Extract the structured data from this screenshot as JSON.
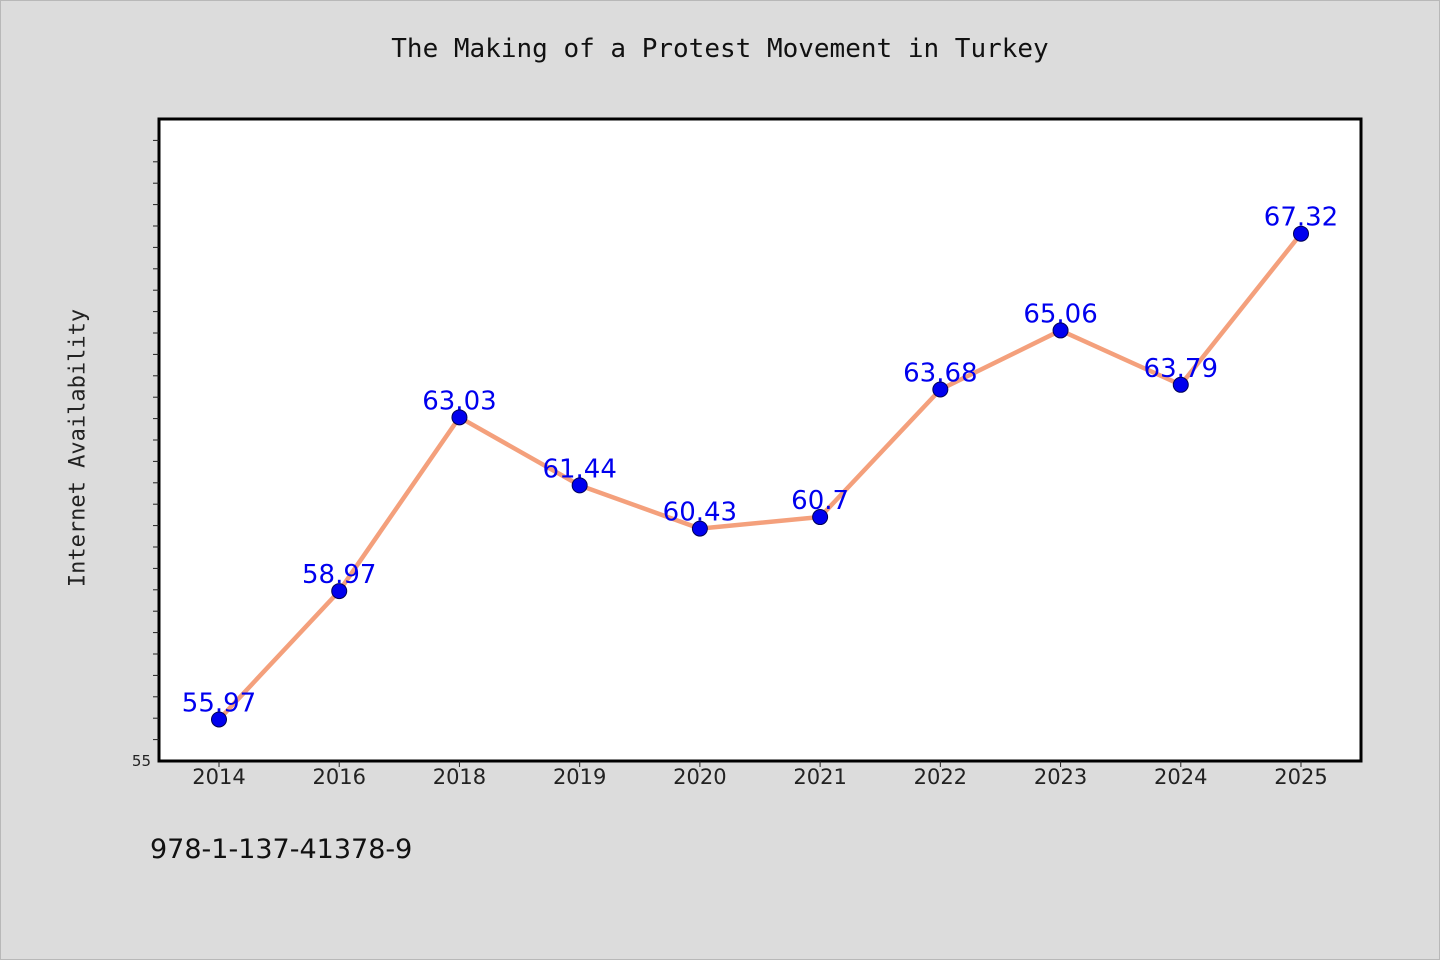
{
  "chart_data": {
    "type": "line",
    "title": "The Making of a Protest Movement in Turkey",
    "xlabel": "",
    "ylabel": "Internet Availability",
    "categories": [
      "2014",
      "2016",
      "2018",
      "2019",
      "2020",
      "2021",
      "2022",
      "2023",
      "2024",
      "2025"
    ],
    "values": [
      55.97,
      58.97,
      63.03,
      61.44,
      60.43,
      60.7,
      63.68,
      65.06,
      63.79,
      67.32
    ],
    "data_labels": [
      "55.97",
      "58.97",
      "63.03",
      "61.44",
      "60.43",
      "60.7",
      "63.68",
      "65.06",
      "63.79",
      "67.32"
    ],
    "y_tick_labels": [
      "55"
    ],
    "ylim": [
      55,
      70
    ],
    "grid": false,
    "line_color": "#f4a07c",
    "marker_color": "#0000ee",
    "label_color": "#0000ee",
    "plot_background": "#ffffff",
    "page_background": "#dcdcdc"
  },
  "footer": {
    "code": "978-1-137-41378-9"
  }
}
